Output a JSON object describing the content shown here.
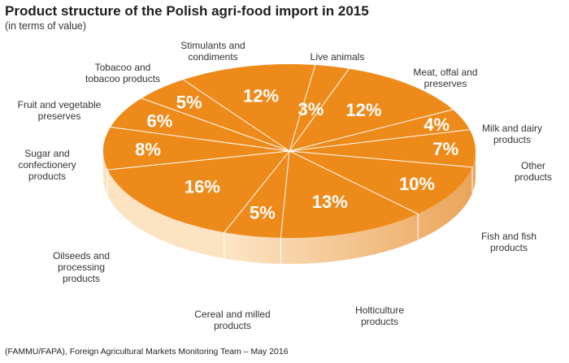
{
  "title": "Product structure of the Polish agri-food import in 2015",
  "subtitle": "(in terms of value)",
  "source": "(FAMMU/FAPA), Foreign Agricultural Markets Monitoring Team – May 2016",
  "colors": {
    "top": "#ee8a1a",
    "separator": "#ffffff",
    "side_light": "#fce3c2",
    "side_dark": "#eaa459"
  },
  "chart_data": {
    "type": "pie",
    "title": "Product structure of the Polish agri-food import in 2015",
    "subtitle": "(in terms of value)",
    "slices": [
      {
        "label": "Live animals",
        "value": 3,
        "display": "3%",
        "lines": [
          "Live animals"
        ]
      },
      {
        "label": "Meat, offal and preserves",
        "value": 12,
        "display": "12%",
        "lines": [
          "Meat, offal and",
          "preserves"
        ]
      },
      {
        "label": "Milk and dairy products",
        "value": 4,
        "display": "4%",
        "lines": [
          "Milk and dairy",
          "products"
        ]
      },
      {
        "label": "Other products",
        "value": 7,
        "display": "7%",
        "lines": [
          "Other",
          "products"
        ]
      },
      {
        "label": "Fish and fish products",
        "value": 10,
        "display": "10%",
        "lines": [
          "Fish and fish",
          "products"
        ]
      },
      {
        "label": "Holticulture products",
        "value": 13,
        "display": "13%",
        "lines": [
          "Holticulture",
          "products"
        ]
      },
      {
        "label": "Cereal and milled products",
        "value": 5,
        "display": "5%",
        "lines": [
          "Cereal and milled",
          "products"
        ]
      },
      {
        "label": "Oilseeds and processing products",
        "value": 16,
        "display": "16%",
        "lines": [
          "Oilseeds and",
          "processing",
          "products"
        ]
      },
      {
        "label": "Sugar and confectionery products",
        "value": 8,
        "display": "8%",
        "lines": [
          "Sugar and",
          "confectionery",
          "products"
        ]
      },
      {
        "label": "Fruit and vegetable preserves",
        "value": 6,
        "display": "6%",
        "lines": [
          "Fruit and vegetable",
          "preserves"
        ]
      },
      {
        "label": "Tobacoo and tobacoo products",
        "value": 5,
        "display": "5%",
        "lines": [
          "Tobacoo and",
          "tobacoo products"
        ]
      },
      {
        "label": "Stimulants and condiments",
        "value": 12,
        "display": "12%",
        "lines": [
          "Stimulants and",
          "condiments"
        ]
      }
    ]
  }
}
